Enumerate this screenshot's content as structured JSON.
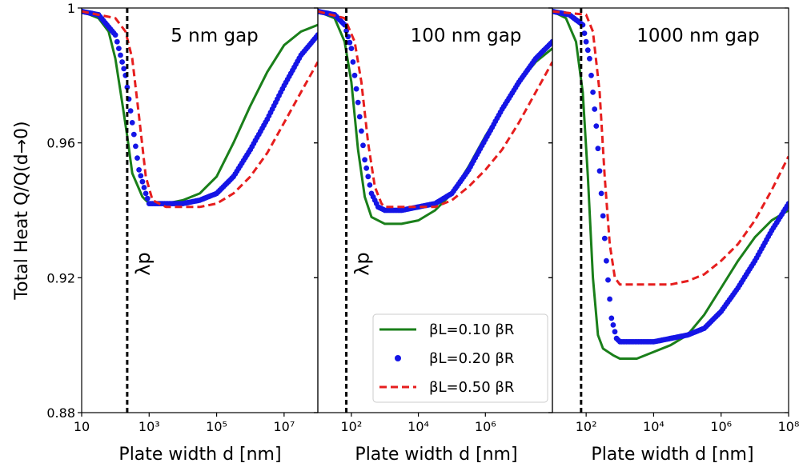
{
  "chart_data": {
    "type": "line",
    "ylabel": "Total Heat Q/Q(d→0)",
    "ylim": [
      0.88,
      1.0
    ],
    "y_ticks": [
      {
        "value": 0.88,
        "label": "0.88"
      },
      {
        "value": 0.92,
        "label": "0.92"
      },
      {
        "value": 0.96,
        "label": "0.96"
      },
      {
        "value": 1.0,
        "label": "1"
      }
    ],
    "legend": {
      "placement": "lower-right of middle panel",
      "entries": [
        {
          "label": "βL=0.10 βR",
          "color": "#1a7f1a",
          "style": "solid"
        },
        {
          "label": "βL=0.20 βR",
          "color": "#1515e6",
          "style": "dotted-markers"
        },
        {
          "label": "βL=0.50 βR",
          "color": "#e61e1e",
          "style": "dashed"
        }
      ]
    },
    "x_scale": "log",
    "panels": [
      {
        "title": "5 nm gap",
        "xlabel": "Plate width d [nm]",
        "xlim_log10": [
          1,
          8
        ],
        "x_ticks": [
          {
            "log10": 1,
            "label": "10"
          },
          {
            "log10": 3,
            "label": "10³"
          },
          {
            "log10": 5,
            "label": "10⁵"
          },
          {
            "log10": 7,
            "label": "10⁷"
          }
        ],
        "lambda_p_log10": 2.35,
        "lambda_label": "λp",
        "series": [
          {
            "name": "βL=0.10 βR",
            "log10_x": [
              1,
              1.5,
              1.8,
              2.0,
              2.2,
              2.35,
              2.5,
              2.8,
              3.0,
              3.5,
              4.0,
              4.5,
              5.0,
              5.5,
              6.0,
              6.5,
              7.0,
              7.5,
              8.0
            ],
            "y": [
              0.999,
              0.997,
              0.993,
              0.985,
              0.972,
              0.962,
              0.951,
              0.944,
              0.942,
              0.942,
              0.943,
              0.945,
              0.95,
              0.96,
              0.971,
              0.981,
              0.989,
              0.993,
              0.995
            ]
          },
          {
            "name": "βL=0.20 βR",
            "log10_x": [
              1,
              1.5,
              2.0,
              2.3,
              2.5,
              2.7,
              2.9,
              3.0,
              3.5,
              4.0,
              4.5,
              5.0,
              5.5,
              6.0,
              6.5,
              7.0,
              7.5,
              8.0
            ],
            "y": [
              0.999,
              0.998,
              0.992,
              0.98,
              0.966,
              0.952,
              0.945,
              0.942,
              0.942,
              0.942,
              0.943,
              0.945,
              0.95,
              0.958,
              0.967,
              0.977,
              0.986,
              0.992
            ]
          },
          {
            "name": "βL=0.50 βR",
            "log10_x": [
              1,
              2.0,
              2.3,
              2.5,
              2.7,
              2.9,
              3.1,
              3.5,
              4.0,
              4.5,
              5.0,
              5.5,
              6.0,
              6.5,
              7.0,
              7.5,
              8.0
            ],
            "y": [
              0.999,
              0.997,
              0.993,
              0.985,
              0.968,
              0.95,
              0.943,
              0.941,
              0.941,
              0.941,
              0.942,
              0.945,
              0.95,
              0.957,
              0.966,
              0.975,
              0.984
            ]
          }
        ]
      },
      {
        "title": "100 nm gap",
        "xlabel": "Plate width d [nm]",
        "xlim_log10": [
          1,
          8
        ],
        "x_ticks": [
          {
            "log10": 2,
            "label": "10²"
          },
          {
            "log10": 4,
            "label": "10⁴"
          },
          {
            "log10": 6,
            "label": "10⁶"
          }
        ],
        "lambda_p_log10": 1.85,
        "lambda_label": "λp",
        "series": [
          {
            "name": "βL=0.10 βR",
            "log10_x": [
              1,
              1.5,
              1.8,
              2.0,
              2.2,
              2.4,
              2.6,
              3.0,
              3.5,
              4.0,
              4.5,
              5.0,
              5.5,
              6.0,
              6.5,
              7.0,
              7.5,
              8.0
            ],
            "y": [
              0.999,
              0.997,
              0.99,
              0.978,
              0.958,
              0.944,
              0.938,
              0.936,
              0.936,
              0.937,
              0.94,
              0.945,
              0.953,
              0.962,
              0.97,
              0.978,
              0.984,
              0.988
            ]
          },
          {
            "name": "βL=0.20 βR",
            "log10_x": [
              1,
              1.5,
              1.8,
              2.0,
              2.2,
              2.4,
              2.6,
              2.8,
              3.0,
              3.5,
              4.0,
              4.5,
              5.0,
              5.5,
              6.0,
              6.5,
              7.0,
              7.5,
              8.0
            ],
            "y": [
              0.999,
              0.998,
              0.995,
              0.988,
              0.972,
              0.955,
              0.945,
              0.941,
              0.94,
              0.94,
              0.941,
              0.942,
              0.945,
              0.952,
              0.961,
              0.97,
              0.978,
              0.985,
              0.99
            ]
          },
          {
            "name": "βL=0.50 βR",
            "log10_x": [
              1,
              1.8,
              2.1,
              2.3,
              2.5,
              2.7,
              2.9,
              3.0,
              3.5,
              4.0,
              4.5,
              5.0,
              5.5,
              6.0,
              6.5,
              7.0,
              7.5,
              8.0
            ],
            "y": [
              0.999,
              0.997,
              0.99,
              0.978,
              0.96,
              0.947,
              0.942,
              0.941,
              0.941,
              0.941,
              0.941,
              0.943,
              0.947,
              0.952,
              0.958,
              0.966,
              0.975,
              0.984
            ]
          }
        ]
      },
      {
        "title": "1000 nm gap",
        "xlabel": "Plate width d [nm]",
        "xlim_log10": [
          1,
          8
        ],
        "x_ticks": [
          {
            "log10": 2,
            "label": "10²"
          },
          {
            "log10": 4,
            "label": "10⁴"
          },
          {
            "log10": 6,
            "label": "10⁶"
          },
          {
            "log10": 8,
            "label": "10⁸"
          }
        ],
        "lambda_p_log10": 1.85,
        "lambda_label": "",
        "series": [
          {
            "name": "βL=0.10 βR",
            "log10_x": [
              1,
              1.4,
              1.7,
              1.9,
              2.05,
              2.2,
              2.35,
              2.5,
              2.8,
              3.0,
              3.5,
              4.0,
              4.5,
              5.0,
              5.5,
              6.0,
              6.5,
              7.0,
              7.5,
              8.0
            ],
            "y": [
              0.999,
              0.997,
              0.99,
              0.975,
              0.95,
              0.92,
              0.903,
              0.899,
              0.897,
              0.896,
              0.896,
              0.898,
              0.9,
              0.903,
              0.909,
              0.917,
              0.925,
              0.932,
              0.937,
              0.94
            ]
          },
          {
            "name": "βL=0.20 βR",
            "log10_x": [
              1,
              1.5,
              1.9,
              2.1,
              2.3,
              2.45,
              2.6,
              2.75,
              2.9,
              3.0,
              3.5,
              4.0,
              4.5,
              5.0,
              5.5,
              6.0,
              6.5,
              7.0,
              7.5,
              8.0
            ],
            "y": [
              0.999,
              0.998,
              0.995,
              0.985,
              0.965,
              0.945,
              0.925,
              0.908,
              0.902,
              0.901,
              0.901,
              0.901,
              0.902,
              0.903,
              0.905,
              0.91,
              0.917,
              0.925,
              0.934,
              0.942
            ]
          },
          {
            "name": "βL=0.50 βR",
            "log10_x": [
              1,
              2.0,
              2.2,
              2.4,
              2.55,
              2.7,
              2.85,
              3.0,
              3.5,
              4.0,
              4.5,
              5.0,
              5.5,
              6.0,
              6.5,
              7.0,
              7.5,
              8.0
            ],
            "y": [
              0.999,
              0.998,
              0.993,
              0.975,
              0.95,
              0.93,
              0.92,
              0.918,
              0.918,
              0.918,
              0.918,
              0.919,
              0.921,
              0.925,
              0.93,
              0.937,
              0.946,
              0.956
            ]
          }
        ]
      }
    ]
  }
}
